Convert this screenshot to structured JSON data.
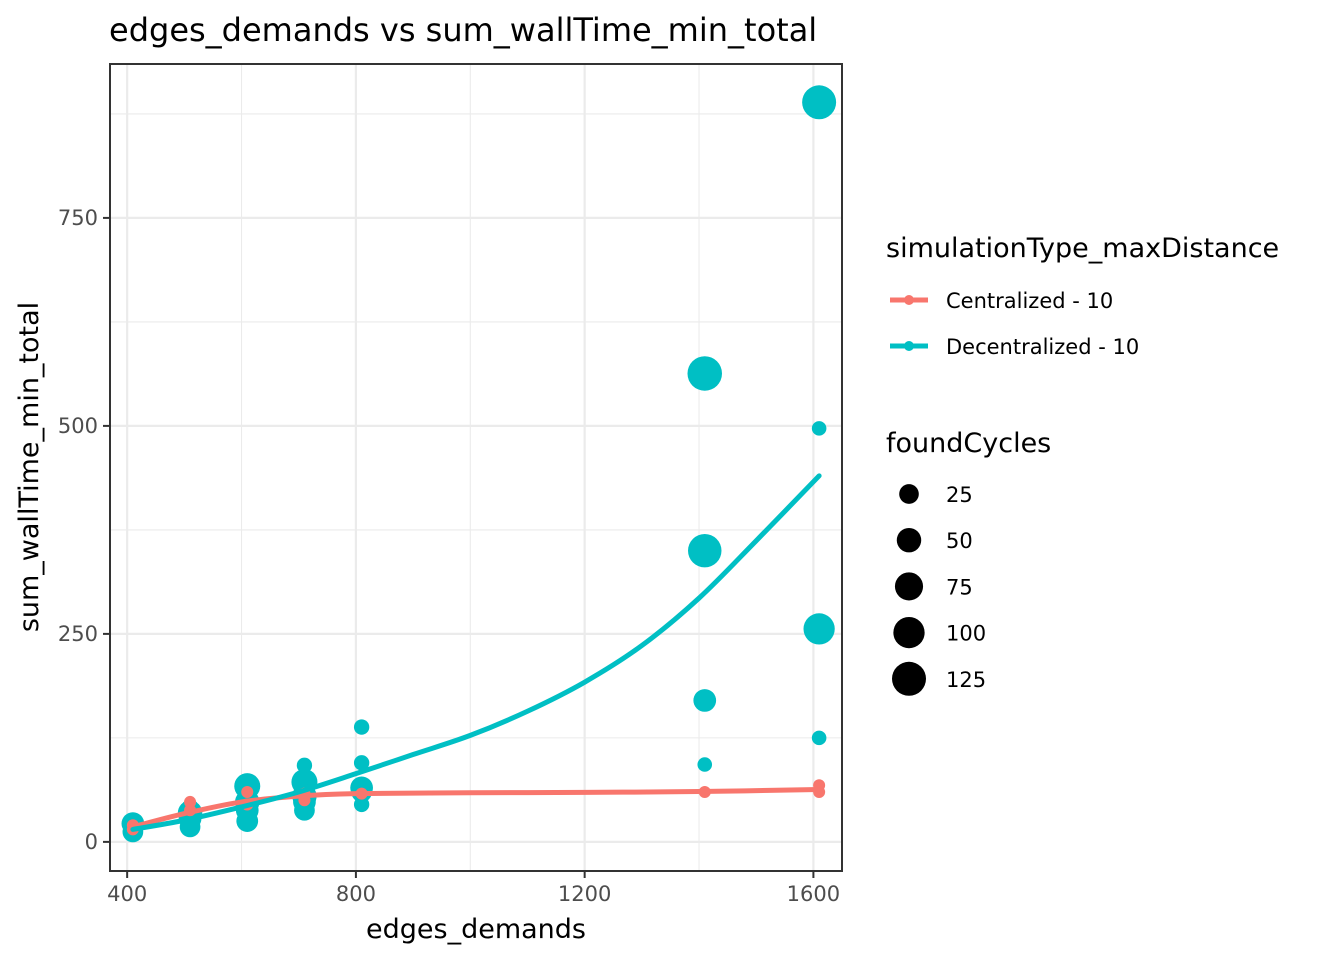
{
  "chart_data": {
    "type": "scatter",
    "title": "edges_demands  vs  sum_wallTime_min_total",
    "xlabel": "edges_demands",
    "ylabel": "sum_wallTime_min_total",
    "xlim": [
      370,
      1650
    ],
    "ylim": [
      -35,
      935
    ],
    "x_ticks": [
      400,
      800,
      1200,
      1600
    ],
    "x_tick_labels": [
      "400",
      "800",
      "1200",
      "1600"
    ],
    "x_minor_ticks": [
      600,
      1000,
      1400
    ],
    "y_ticks": [
      0,
      250,
      500,
      750
    ],
    "y_tick_labels": [
      "0",
      "250",
      "500",
      "750"
    ],
    "y_minor_ticks": [
      125,
      375,
      625,
      875
    ],
    "grid": true,
    "legend_position": "right",
    "color_legend": {
      "title": "simulationType_maxDistance",
      "entries": [
        {
          "label": "Centralized - 10",
          "color": "#F8766D"
        },
        {
          "label": "Decentralized - 10",
          "color": "#00BFC4"
        }
      ]
    },
    "size_legend": {
      "title": "foundCycles",
      "entries": [
        {
          "label": "25",
          "value": 25
        },
        {
          "label": "50",
          "value": 50
        },
        {
          "label": "75",
          "value": 75
        },
        {
          "label": "100",
          "value": 100
        },
        {
          "label": "125",
          "value": 125
        }
      ]
    },
    "series": [
      {
        "name": "Centralized - 10",
        "color": "#F8766D",
        "points": [
          {
            "x": 410,
            "y": 20,
            "size": 3
          },
          {
            "x": 410,
            "y": 15,
            "size": 3
          },
          {
            "x": 510,
            "y": 48,
            "size": 3
          },
          {
            "x": 510,
            "y": 38,
            "size": 3
          },
          {
            "x": 610,
            "y": 60,
            "size": 3
          },
          {
            "x": 610,
            "y": 45,
            "size": 3
          },
          {
            "x": 710,
            "y": 58,
            "size": 3
          },
          {
            "x": 710,
            "y": 50,
            "size": 3
          },
          {
            "x": 810,
            "y": 58,
            "size": 3
          },
          {
            "x": 1410,
            "y": 60,
            "size": 3
          },
          {
            "x": 1610,
            "y": 68,
            "size": 3
          },
          {
            "x": 1610,
            "y": 60,
            "size": 3
          }
        ],
        "trend": [
          [
            410,
            18
          ],
          [
            500,
            34
          ],
          [
            600,
            48
          ],
          [
            700,
            55
          ],
          [
            800,
            58
          ],
          [
            1000,
            59
          ],
          [
            1200,
            59.5
          ],
          [
            1400,
            60.5
          ],
          [
            1610,
            63
          ]
        ]
      },
      {
        "name": "Decentralized - 10",
        "color": "#00BFC4",
        "points": [
          {
            "x": 410,
            "y": 22,
            "size": 40
          },
          {
            "x": 410,
            "y": 12,
            "size": 30
          },
          {
            "x": 410,
            "y": 18,
            "size": 20
          },
          {
            "x": 510,
            "y": 35,
            "size": 50
          },
          {
            "x": 510,
            "y": 28,
            "size": 40
          },
          {
            "x": 510,
            "y": 18,
            "size": 30
          },
          {
            "x": 510,
            "y": 40,
            "size": 20
          },
          {
            "x": 610,
            "y": 67,
            "size": 60
          },
          {
            "x": 610,
            "y": 48,
            "size": 50
          },
          {
            "x": 610,
            "y": 38,
            "size": 40
          },
          {
            "x": 610,
            "y": 25,
            "size": 35
          },
          {
            "x": 710,
            "y": 92,
            "size": 10
          },
          {
            "x": 710,
            "y": 72,
            "size": 60
          },
          {
            "x": 710,
            "y": 55,
            "size": 50
          },
          {
            "x": 710,
            "y": 48,
            "size": 40
          },
          {
            "x": 710,
            "y": 38,
            "size": 30
          },
          {
            "x": 810,
            "y": 138,
            "size": 10
          },
          {
            "x": 810,
            "y": 95,
            "size": 10
          },
          {
            "x": 810,
            "y": 65,
            "size": 40
          },
          {
            "x": 810,
            "y": 60,
            "size": 30
          },
          {
            "x": 810,
            "y": 45,
            "size": 10
          },
          {
            "x": 1410,
            "y": 563,
            "size": 130
          },
          {
            "x": 1410,
            "y": 350,
            "size": 120
          },
          {
            "x": 1410,
            "y": 170,
            "size": 40
          },
          {
            "x": 1410,
            "y": 93,
            "size": 8
          },
          {
            "x": 1610,
            "y": 889,
            "size": 125
          },
          {
            "x": 1610,
            "y": 497,
            "size": 8
          },
          {
            "x": 1610,
            "y": 256,
            "size": 100
          },
          {
            "x": 1610,
            "y": 125,
            "size": 8
          }
        ],
        "trend": [
          [
            410,
            15
          ],
          [
            500,
            26
          ],
          [
            600,
            42
          ],
          [
            700,
            60
          ],
          [
            800,
            82
          ],
          [
            900,
            105
          ],
          [
            1000,
            128
          ],
          [
            1100,
            157
          ],
          [
            1200,
            192
          ],
          [
            1300,
            236
          ],
          [
            1400,
            293
          ],
          [
            1500,
            362
          ],
          [
            1610,
            440
          ]
        ]
      }
    ]
  }
}
